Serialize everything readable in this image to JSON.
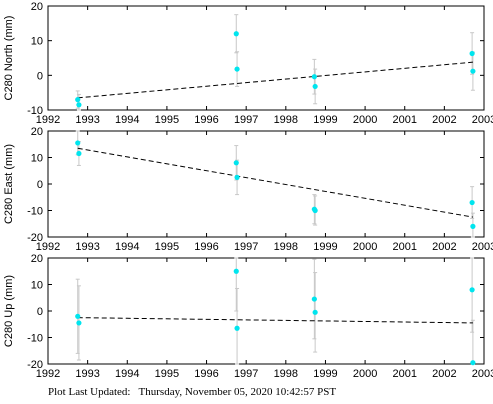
{
  "chart_data": [
    {
      "type": "scatter",
      "ylabel": "C280 North (mm)",
      "xlim": [
        1992,
        2003
      ],
      "ylim": [
        -10,
        20
      ],
      "yticks": [
        -10,
        0,
        10,
        20
      ],
      "xticks": [
        1992,
        1993,
        1994,
        1995,
        1996,
        1997,
        1998,
        1999,
        2000,
        2001,
        2002,
        2003
      ],
      "x_tick_labels_shown": true,
      "grid": false,
      "points": [
        {
          "x": 1992.75,
          "y": -7.0,
          "err": 2.5
        },
        {
          "x": 1992.78,
          "y": -8.5,
          "err": 3.0
        },
        {
          "x": 1996.75,
          "y": 12.0,
          "err": 5.5
        },
        {
          "x": 1996.77,
          "y": 1.8,
          "err": 5.0
        },
        {
          "x": 1998.72,
          "y": -0.4,
          "err": 5.0
        },
        {
          "x": 1998.74,
          "y": -3.2,
          "err": 5.0
        },
        {
          "x": 2002.7,
          "y": 6.3,
          "err": 6.0
        },
        {
          "x": 2002.72,
          "y": 1.2,
          "err": 5.5
        }
      ],
      "trend": {
        "x": [
          1992.75,
          2002.72
        ],
        "y": [
          -6.5,
          3.8
        ]
      }
    },
    {
      "type": "scatter",
      "ylabel": "C280 East (mm)",
      "xlim": [
        1992,
        2003
      ],
      "ylim": [
        -20,
        20
      ],
      "yticks": [
        -20,
        -10,
        0,
        10,
        20
      ],
      "xticks": [
        1992,
        1993,
        1994,
        1995,
        1996,
        1997,
        1998,
        1999,
        2000,
        2001,
        2002,
        2003
      ],
      "x_tick_labels_shown": true,
      "grid": false,
      "points": [
        {
          "x": 1992.75,
          "y": 15.5,
          "err": 4.5
        },
        {
          "x": 1992.78,
          "y": 11.5,
          "err": 4.5
        },
        {
          "x": 1996.75,
          "y": 8.0,
          "err": 6.5
        },
        {
          "x": 1996.77,
          "y": 2.5,
          "err": 6.5
        },
        {
          "x": 1998.72,
          "y": -9.5,
          "err": 5.5
        },
        {
          "x": 1998.74,
          "y": -10.0,
          "err": 5.5
        },
        {
          "x": 2002.7,
          "y": -7.0,
          "err": 6.0
        },
        {
          "x": 2002.72,
          "y": -16.0,
          "err": 5.0
        }
      ],
      "trend": {
        "x": [
          1992.75,
          2002.72
        ],
        "y": [
          13.5,
          -12.5
        ]
      }
    },
    {
      "type": "scatter",
      "ylabel": "C280 Up (mm)",
      "xlim": [
        1992,
        2003
      ],
      "ylim": [
        -20,
        20
      ],
      "yticks": [
        -20,
        -10,
        0,
        10,
        20
      ],
      "xticks": [
        1992,
        1993,
        1994,
        1995,
        1996,
        1997,
        1998,
        1999,
        2000,
        2001,
        2002,
        2003
      ],
      "x_tick_labels_shown": true,
      "grid": false,
      "points": [
        {
          "x": 1992.75,
          "y": -2.0,
          "err": 14.0
        },
        {
          "x": 1992.78,
          "y": -4.5,
          "err": 14.0
        },
        {
          "x": 1996.75,
          "y": 15.0,
          "err": 15.0
        },
        {
          "x": 1996.77,
          "y": -6.5,
          "err": 15.0
        },
        {
          "x": 1998.72,
          "y": 4.5,
          "err": 15.0
        },
        {
          "x": 1998.74,
          "y": -0.5,
          "err": 15.0
        },
        {
          "x": 2002.7,
          "y": 8.0,
          "err": 16.0
        },
        {
          "x": 2002.72,
          "y": -19.5,
          "err": 16.0
        }
      ],
      "trend": {
        "x": [
          1992.75,
          2002.72
        ],
        "y": [
          -2.5,
          -4.5
        ]
      }
    }
  ],
  "footer": "Plot Last Updated:   Thursday, November 05, 2020 10:42:57 PST",
  "colors": {
    "marker": "#00e5ee",
    "errorbar": "#c8c8c8",
    "trend": "#000000",
    "axis": "#000000"
  }
}
